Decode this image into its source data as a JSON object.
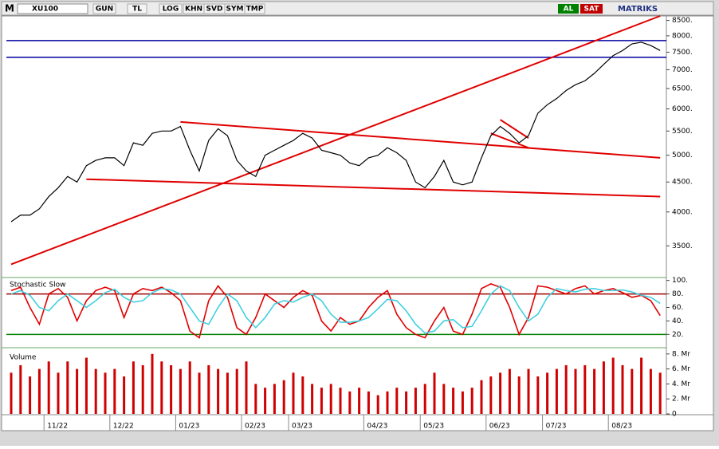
{
  "toolbar": {
    "logo": "M",
    "symbol": "XU100",
    "buttons": [
      "GUN",
      "TL",
      "LOG",
      "KHN",
      "SVD",
      "SYM",
      "TMP"
    ],
    "buy": "AL",
    "sell": "SAT",
    "brand": "MATRIKS"
  },
  "chart_data": [
    {
      "type": "line",
      "categories": [
        null,
        null,
        null,
        null,
        "11/22",
        null,
        null,
        null,
        null,
        null,
        null,
        "12/22",
        null,
        null,
        null,
        null,
        null,
        null,
        "01/23",
        null,
        null,
        null,
        null,
        null,
        null,
        "02/23",
        null,
        null,
        null,
        null,
        "03/23",
        null,
        null,
        null,
        null,
        null,
        null,
        null,
        "04/23",
        null,
        null,
        null,
        null,
        null,
        "05/23",
        null,
        null,
        null,
        null,
        null,
        null,
        "06/23",
        null,
        null,
        null,
        null,
        null,
        "07/23",
        null,
        null,
        null,
        null,
        null,
        null,
        "08/23",
        null,
        null,
        null,
        null,
        null
      ],
      "series": [
        {
          "color": "#000000",
          "values": [
            3850,
            3950,
            3950,
            4050,
            4250,
            4400,
            4600,
            4500,
            4800,
            4900,
            4950,
            4950,
            4800,
            5250,
            5200,
            5450,
            5500,
            5500,
            5600,
            5100,
            4700,
            5300,
            5550,
            5400,
            4900,
            4700,
            4600,
            5000,
            5100,
            5200,
            5300,
            5450,
            5350,
            5100,
            5050,
            5000,
            4850,
            4800,
            4950,
            5000,
            5150,
            5050,
            4900,
            4500,
            4400,
            4600,
            4900,
            4500,
            4450,
            4500,
            4950,
            5400,
            5600,
            5450,
            5250,
            5400,
            5900,
            6100,
            6250,
            6450,
            6600,
            6700,
            6900,
            7150,
            7400,
            7550,
            7750,
            7800,
            7700,
            7550
          ]
        }
      ],
      "levels": [
        7850,
        7350
      ],
      "level_color": "#0000a0",
      "trend_lines": [
        {
          "x": [
            0,
            69
          ],
          "values": [
            3255,
            8650
          ]
        },
        {
          "x": [
            18,
            69
          ],
          "values": [
            5700,
            4950
          ]
        },
        {
          "x": [
            8,
            69
          ],
          "values": [
            4550,
            4250
          ]
        },
        {
          "x": [
            52,
            55
          ],
          "values": [
            5750,
            5350
          ]
        },
        {
          "x": [
            51,
            55
          ],
          "values": [
            5450,
            5150
          ]
        }
      ],
      "trend_color": "#e00000",
      "log_scale": true,
      "ylim": [
        3100,
        8650
      ],
      "yticks": [
        {
          "value": 3500,
          "label": "3500."
        },
        {
          "value": 4000,
          "label": "4000."
        },
        {
          "value": 4500,
          "label": "4500."
        },
        {
          "value": 5000,
          "label": "5000."
        },
        {
          "value": 5500,
          "label": "5500."
        },
        {
          "value": 6000,
          "label": "6000."
        },
        {
          "value": 6500,
          "label": "6500."
        },
        {
          "value": 7000,
          "label": "7000."
        },
        {
          "value": 7500,
          "label": "7500."
        },
        {
          "value": 8000,
          "label": "8000."
        },
        {
          "value": 8500,
          "label": "8500."
        }
      ]
    },
    {
      "type": "line",
      "title": "Stochastic Slow",
      "series": [
        {
          "color": "#e00000",
          "values": [
            85,
            90,
            60,
            35,
            80,
            88,
            75,
            40,
            70,
            85,
            90,
            85,
            45,
            80,
            88,
            85,
            90,
            82,
            70,
            25,
            15,
            70,
            92,
            75,
            30,
            20,
            45,
            80,
            70,
            60,
            75,
            85,
            78,
            40,
            25,
            45,
            35,
            40,
            60,
            75,
            85,
            50,
            30,
            20,
            15,
            40,
            60,
            25,
            20,
            50,
            88,
            95,
            90,
            60,
            20,
            45,
            92,
            90,
            85,
            80,
            88,
            92,
            80,
            85,
            88,
            82,
            75,
            78,
            70,
            48
          ]
        },
        {
          "color": "#40d0e0",
          "values": [
            80,
            85,
            78,
            60,
            55,
            70,
            80,
            70,
            60,
            70,
            82,
            87,
            75,
            68,
            70,
            82,
            88,
            86,
            80,
            60,
            40,
            35,
            60,
            80,
            70,
            45,
            30,
            45,
            65,
            70,
            68,
            75,
            80,
            70,
            50,
            38,
            38,
            40,
            45,
            58,
            72,
            70,
            55,
            35,
            22,
            25,
            40,
            42,
            30,
            32,
            55,
            80,
            92,
            85,
            60,
            40,
            50,
            75,
            88,
            85,
            83,
            87,
            88,
            85,
            85,
            86,
            83,
            78,
            75,
            66
          ]
        }
      ],
      "levels": [
        80,
        20
      ],
      "level_colors": [
        "#a00000",
        "#008000"
      ],
      "ylim": [
        5,
        102
      ],
      "yticks": [
        {
          "value": 20,
          "label": "20."
        },
        {
          "value": 40,
          "label": "40."
        },
        {
          "value": 60,
          "label": "60."
        },
        {
          "value": 80,
          "label": "80."
        },
        {
          "value": 100,
          "label": "100."
        }
      ]
    },
    {
      "type": "bar",
      "title": "Volume",
      "color": "#d00000",
      "values": [
        5.5,
        6.5,
        5,
        6,
        7,
        5.5,
        7,
        6,
        7.5,
        6,
        5.5,
        6,
        5,
        7,
        6.5,
        8,
        7,
        6.5,
        6,
        7,
        5.5,
        6.5,
        6,
        5.5,
        6,
        7,
        4,
        3.5,
        4,
        4.5,
        5.5,
        5,
        4,
        3.5,
        4,
        3.5,
        3,
        3.5,
        3,
        2.5,
        3,
        3.5,
        3,
        3.5,
        4,
        5.5,
        4,
        3.5,
        3,
        3.5,
        4.5,
        5,
        5.5,
        6,
        5,
        6,
        5,
        5.5,
        6,
        6.5,
        6,
        6.5,
        6,
        7,
        7.5,
        6.5,
        6,
        7.5,
        6,
        5.5
      ],
      "ylim": [
        0,
        8.3
      ],
      "yticks": [
        0,
        {
          "value": 2,
          "label": "2. Mr"
        },
        {
          "value": 4,
          "label": "4. Mr"
        },
        {
          "value": 6,
          "label": "6. Mr"
        },
        {
          "value": 8,
          "label": "8. Mr"
        }
      ]
    }
  ]
}
